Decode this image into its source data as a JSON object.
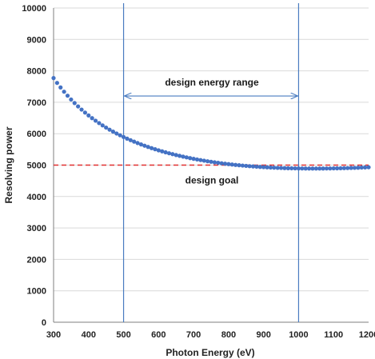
{
  "chart_data": {
    "type": "scatter",
    "title": "",
    "xlabel": "Photon Energy (eV)",
    "ylabel": "Resolving power",
    "xlim": [
      300,
      1200
    ],
    "ylim": [
      0,
      10000
    ],
    "x_ticks": [
      300,
      400,
      500,
      600,
      700,
      800,
      900,
      1000,
      1100,
      1200
    ],
    "y_ticks": [
      0,
      1000,
      2000,
      3000,
      4000,
      5000,
      6000,
      7000,
      8000,
      9000,
      10000
    ],
    "grid": "horizontal",
    "legend": "none",
    "series": [
      {
        "marker": "circle",
        "color": "#4472C4",
        "points": [
          [
            300,
            7770
          ],
          [
            310,
            7616
          ],
          [
            320,
            7472
          ],
          [
            330,
            7336
          ],
          [
            340,
            7209
          ],
          [
            350,
            7088
          ],
          [
            360,
            6975
          ],
          [
            370,
            6868
          ],
          [
            380,
            6767
          ],
          [
            390,
            6671
          ],
          [
            400,
            6581
          ],
          [
            410,
            6495
          ],
          [
            420,
            6414
          ],
          [
            430,
            6337
          ],
          [
            440,
            6264
          ],
          [
            450,
            6194
          ],
          [
            460,
            6128
          ],
          [
            470,
            6065
          ],
          [
            480,
            6006
          ],
          [
            490,
            5949
          ],
          [
            500,
            5895
          ],
          [
            510,
            5843
          ],
          [
            520,
            5794
          ],
          [
            530,
            5747
          ],
          [
            540,
            5702
          ],
          [
            550,
            5659
          ],
          [
            560,
            5618
          ],
          [
            570,
            5579
          ],
          [
            580,
            5541
          ],
          [
            590,
            5506
          ],
          [
            600,
            5471
          ],
          [
            610,
            5439
          ],
          [
            620,
            5407
          ],
          [
            630,
            5377
          ],
          [
            640,
            5349
          ],
          [
            650,
            5321
          ],
          [
            660,
            5295
          ],
          [
            670,
            5270
          ],
          [
            680,
            5246
          ],
          [
            690,
            5223
          ],
          [
            700,
            5201
          ],
          [
            710,
            5180
          ],
          [
            720,
            5160
          ],
          [
            730,
            5141
          ],
          [
            740,
            5123
          ],
          [
            750,
            5106
          ],
          [
            760,
            5089
          ],
          [
            770,
            5074
          ],
          [
            780,
            5059
          ],
          [
            790,
            5045
          ],
          [
            800,
            5032
          ],
          [
            810,
            5019
          ],
          [
            820,
            5007
          ],
          [
            830,
            4996
          ],
          [
            840,
            4986
          ],
          [
            850,
            4976
          ],
          [
            860,
            4967
          ],
          [
            870,
            4958
          ],
          [
            880,
            4950
          ],
          [
            890,
            4943
          ],
          [
            900,
            4936
          ],
          [
            910,
            4930
          ],
          [
            920,
            4924
          ],
          [
            930,
            4918
          ],
          [
            940,
            4913
          ],
          [
            950,
            4909
          ],
          [
            960,
            4905
          ],
          [
            970,
            4902
          ],
          [
            980,
            4899
          ],
          [
            990,
            4897
          ],
          [
            1000,
            4895
          ],
          [
            1010,
            4893
          ],
          [
            1020,
            4892
          ],
          [
            1030,
            4891
          ],
          [
            1040,
            4891
          ],
          [
            1050,
            4891
          ],
          [
            1060,
            4891
          ],
          [
            1070,
            4892
          ],
          [
            1080,
            4893
          ],
          [
            1090,
            4894
          ],
          [
            1100,
            4896
          ],
          [
            1110,
            4898
          ],
          [
            1120,
            4900
          ],
          [
            1130,
            4903
          ],
          [
            1140,
            4906
          ],
          [
            1150,
            4910
          ],
          [
            1160,
            4913
          ],
          [
            1170,
            4917
          ],
          [
            1180,
            4922
          ],
          [
            1190,
            4926
          ],
          [
            1200,
            4931
          ]
        ]
      }
    ],
    "reference_lines": [
      {
        "orientation": "horizontal",
        "value": 5000,
        "color": "#E03030",
        "style": "dashed",
        "label": "design goal"
      },
      {
        "orientation": "vertical",
        "value": 500,
        "color": "#4A7CC0",
        "style": "solid"
      },
      {
        "orientation": "vertical",
        "value": 1000,
        "color": "#4A7CC0",
        "style": "solid"
      }
    ],
    "range_arrow": {
      "from": 500,
      "to": 1000,
      "y": 7200,
      "color": "#4A7CC0",
      "label": "design energy range"
    }
  }
}
